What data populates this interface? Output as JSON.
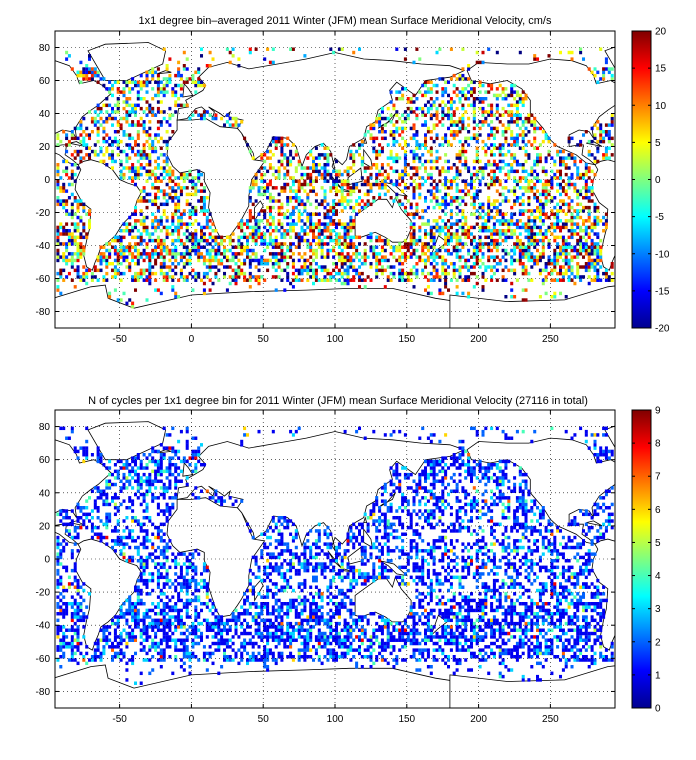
{
  "chart_data": [
    {
      "type": "heatmap",
      "title": "1x1 degree bin–averaged 2011 Winter (JFM) mean Surface Meridional Velocity, cm/s",
      "x_ticks": [
        "-50",
        "0",
        "50",
        "100",
        "150",
        "200",
        "250"
      ],
      "y_ticks": [
        "80",
        "60",
        "40",
        "20",
        "0",
        "-20",
        "-40",
        "-60",
        "-80"
      ],
      "xlim": [
        -95,
        295
      ],
      "ylim": [
        -90,
        90
      ],
      "colorbar": {
        "ticks": [
          "20",
          "15",
          "10",
          "5",
          "0",
          "-5",
          "-10",
          "-15",
          "-20"
        ],
        "range": [
          -20,
          20
        ],
        "colormap": "jet"
      },
      "grid": true
    },
    {
      "type": "heatmap",
      "title": "N of cycles per 1x1 degree bin for 2011 Winter (JFM) mean Surface Meridional Velocity (27116 in total)",
      "x_ticks": [
        "-50",
        "0",
        "50",
        "100",
        "150",
        "200",
        "250"
      ],
      "y_ticks": [
        "80",
        "60",
        "40",
        "20",
        "0",
        "-20",
        "-40",
        "-60",
        "-80"
      ],
      "xlim": [
        -95,
        295
      ],
      "ylim": [
        -90,
        90
      ],
      "colorbar": {
        "ticks": [
          "9",
          "8",
          "7",
          "6",
          "5",
          "4",
          "3",
          "2",
          "1",
          "0"
        ],
        "range": [
          0,
          9
        ],
        "colormap": "jet"
      },
      "grid": true
    }
  ]
}
